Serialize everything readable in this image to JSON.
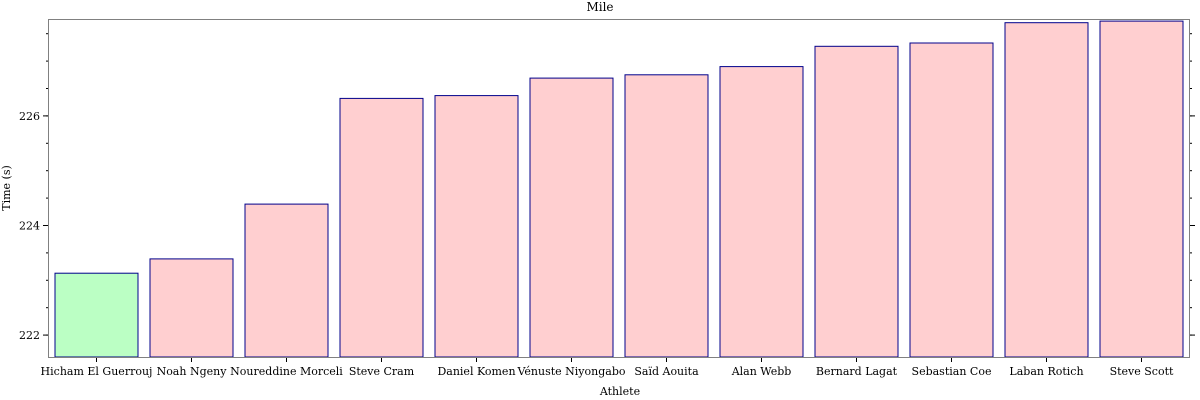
{
  "chart_data": {
    "type": "bar",
    "title": "Mile",
    "xlabel": "Athlete",
    "ylabel": "Time (s)",
    "categories": [
      "Hicham El Guerrouj",
      "Noah Ngeny",
      "Noureddine Morceli",
      "Steve Cram",
      "Daniel Komen",
      "Vénuste Niyongabo",
      "Saïd Aouita",
      "Alan Webb",
      "Bernard Lagat",
      "Sebastian Coe",
      "Laban Rotich",
      "Steve Scott"
    ],
    "values": [
      223.13,
      223.39,
      224.39,
      226.32,
      226.37,
      226.69,
      226.75,
      226.9,
      227.27,
      227.33,
      227.7,
      227.73
    ],
    "highlight_index": 0,
    "ylim": [
      221.6,
      227.75
    ],
    "yticks": [
      222,
      224,
      226
    ],
    "ytick_labels": [
      "222",
      "224",
      "226"
    ],
    "yminor_step": 0.5,
    "grid": false,
    "colors": {
      "highlight_fill": "#bbffc4",
      "bar_fill": "#ffcfd0",
      "bar_stroke": "#00008b",
      "frame": "#808080"
    }
  }
}
